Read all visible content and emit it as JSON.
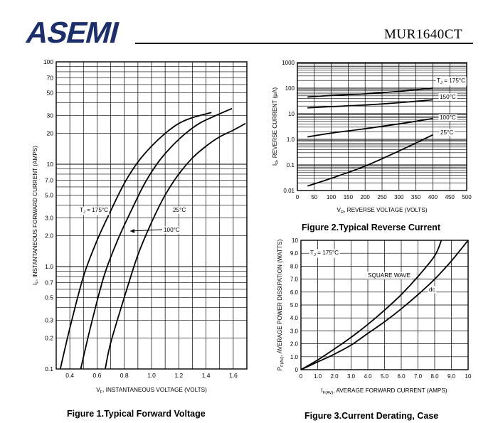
{
  "header": {
    "logo_text": "ASEMI",
    "part_number": "MUR1640CT",
    "colors": {
      "logo": "#1c2f6b",
      "ink": "#000000"
    }
  },
  "chart_data": [
    {
      "type": "line",
      "title": "Figure 1.Typical Forward Voltage",
      "xlabel_parts": [
        "V",
        "F",
        ", INSTANTANEOUS VOLTAGE (VOLTS)"
      ],
      "ylabel_parts": [
        "I",
        "F",
        ", INSTANTANEOUS FORWARD CURRENT (AMPS)"
      ],
      "xscale": "linear",
      "yscale": "log",
      "xlim": [
        0.3,
        1.7
      ],
      "ylim": [
        0.1,
        100
      ],
      "xticks": [
        0.4,
        0.6,
        0.8,
        1.0,
        1.2,
        1.4,
        1.6
      ],
      "xtick_labels": [
        "0.4",
        "0.6",
        "0.8",
        "1.0",
        "1.2",
        "1.4",
        "1.6"
      ],
      "yticks": [
        0.1,
        0.2,
        0.3,
        0.5,
        0.7,
        1.0,
        2.0,
        3.0,
        5.0,
        7.0,
        10,
        20,
        30,
        50,
        70,
        100
      ],
      "ytick_labels": [
        "0.1",
        "0.2",
        "0.3",
        "0.5",
        "0.7",
        "1.0",
        "2.0",
        "3.0",
        "5.0",
        "7.0",
        "10",
        "20",
        "30",
        "50",
        "70",
        "100"
      ],
      "grid": true,
      "series": [
        {
          "name": "TJ = 175°C",
          "x": [
            0.33,
            0.4,
            0.5,
            0.6,
            0.7,
            0.8,
            0.9,
            1.0,
            1.1,
            1.2,
            1.3,
            1.44
          ],
          "y": [
            0.1,
            0.25,
            0.8,
            1.8,
            3.5,
            6.5,
            10.5,
            15.0,
            20.0,
            25.0,
            28.5,
            32.0
          ]
        },
        {
          "name": "100°C",
          "x": [
            0.48,
            0.55,
            0.65,
            0.75,
            0.85,
            0.95,
            1.05,
            1.15,
            1.25,
            1.35,
            1.45,
            1.59
          ],
          "y": [
            0.1,
            0.25,
            0.8,
            1.8,
            3.5,
            6.5,
            10.5,
            15.0,
            20.0,
            25.0,
            29.0,
            35.0
          ]
        },
        {
          "name": "25°C",
          "x": [
            0.66,
            0.7,
            0.8,
            0.9,
            1.0,
            1.1,
            1.2,
            1.3,
            1.4,
            1.5,
            1.6,
            1.69
          ],
          "y": [
            0.1,
            0.18,
            0.5,
            1.3,
            2.7,
            5.0,
            8.0,
            11.5,
            15.0,
            18.5,
            21.5,
            25.0
          ]
        }
      ],
      "annotations": [
        {
          "text_parts": [
            "T",
            "J",
            " = 175°C"
          ]
        },
        {
          "text": "25°C"
        },
        {
          "text": "100°C"
        }
      ]
    },
    {
      "type": "line",
      "title": "Figure 2.Typical Reverse Current",
      "xlabel_parts": [
        "V",
        "R",
        ", REVERSE VOLTAGE (VOLTS)"
      ],
      "ylabel_parts": [
        "I",
        "R",
        ", REVERSE CURRENT (μA)"
      ],
      "xscale": "linear",
      "yscale": "log",
      "xlim": [
        0,
        500
      ],
      "ylim": [
        0.01,
        1000
      ],
      "xticks": [
        0,
        50,
        100,
        150,
        200,
        250,
        300,
        350,
        400,
        450,
        500
      ],
      "xtick_labels": [
        "0",
        "50",
        "100",
        "150",
        "200",
        "250",
        "300",
        "350",
        "400",
        "450",
        "500"
      ],
      "yticks": [
        0.01,
        0.1,
        1.0,
        10,
        100,
        1000
      ],
      "ytick_labels": [
        "0.01",
        "0.1",
        "1.0",
        "10",
        "100",
        "1000"
      ],
      "grid": true,
      "series": [
        {
          "name": "TJ = 175°C",
          "x": [
            30,
            100,
            200,
            300,
            400
          ],
          "y": [
            45,
            52,
            60,
            75,
            100
          ]
        },
        {
          "name": "150°C",
          "x": [
            30,
            100,
            200,
            300,
            400
          ],
          "y": [
            17,
            19,
            22,
            27,
            35
          ]
        },
        {
          "name": "100°C",
          "x": [
            30,
            100,
            200,
            300,
            400
          ],
          "y": [
            1.25,
            1.75,
            2.6,
            4.0,
            6.5
          ]
        },
        {
          "name": "25°C",
          "x": [
            30,
            100,
            200,
            300,
            400
          ],
          "y": [
            0.015,
            0.03,
            0.09,
            0.35,
            1.5
          ]
        }
      ],
      "annotations": [
        {
          "text_parts": [
            "T",
            "J",
            " = 175°C"
          ]
        },
        {
          "text": "150°C"
        },
        {
          "text": "100°C"
        },
        {
          "text": "25°C"
        }
      ]
    },
    {
      "type": "line",
      "title": "Figure 3.Current Derating, Case",
      "xlabel_parts": [
        "I",
        "F(AV)",
        ", AVERAGE FORWARD CURRENT (AMPS)"
      ],
      "ylabel_parts": [
        "P",
        "F(AV)",
        ", AVERAGE POWER DISSIPATION (WATTS)"
      ],
      "xscale": "linear",
      "yscale": "linear",
      "xlim": [
        0,
        10
      ],
      "ylim": [
        0,
        10
      ],
      "xticks": [
        0,
        1,
        2,
        3,
        4,
        5,
        6,
        7,
        8,
        9,
        10
      ],
      "xtick_labels": [
        "0",
        "1.0",
        "2.0",
        "3.0",
        "4.0",
        "5.0",
        "6.0",
        "7.0",
        "8.0",
        "9.0",
        "10"
      ],
      "yticks": [
        0,
        1,
        2,
        3,
        4,
        5,
        6,
        7,
        8,
        9,
        10
      ],
      "ytick_labels": [
        "0",
        "1.0",
        "2.0",
        "3.0",
        "4.0",
        "5.0",
        "6.0",
        "7.0",
        "8.0",
        "9.0",
        "10"
      ],
      "grid": true,
      "series": [
        {
          "name": "SQUARE WAVE",
          "x": [
            0,
            1,
            2,
            3,
            4,
            5,
            6,
            7,
            8,
            8.4
          ],
          "y": [
            0,
            0.75,
            1.6,
            2.5,
            3.5,
            4.6,
            5.8,
            7.2,
            8.8,
            10.0
          ]
        },
        {
          "name": "dc",
          "x": [
            0,
            1,
            2,
            3,
            4,
            5,
            6,
            7,
            8,
            9,
            10
          ],
          "y": [
            0,
            0.6,
            1.2,
            1.9,
            2.8,
            3.7,
            4.7,
            5.8,
            7.0,
            8.4,
            10.0
          ]
        }
      ],
      "annotations": [
        {
          "text_parts": [
            "T",
            "J",
            " = 175°C"
          ]
        },
        {
          "text": "SQUARE WAVE"
        },
        {
          "text": "dc"
        }
      ]
    }
  ]
}
